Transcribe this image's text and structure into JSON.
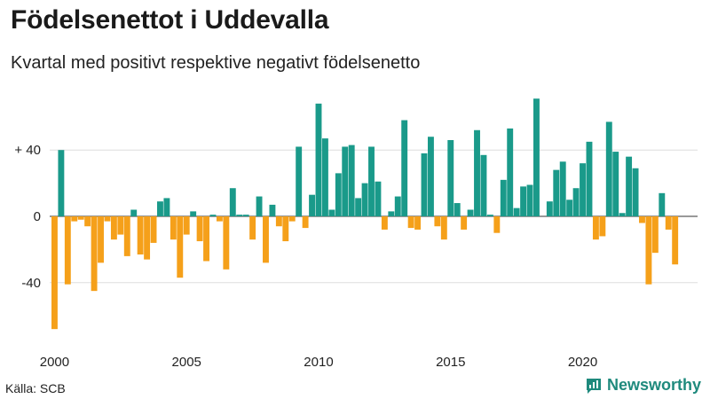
{
  "header": {
    "title": "Födelsenettot i Uddevalla",
    "subtitle": "Kvartal med positivt respektive negativt födelsenetto"
  },
  "footer": {
    "source": "Källa: SCB",
    "brand": "Newsworthy"
  },
  "colors": {
    "positive": "#1a9a8a",
    "negative": "#f5a01a",
    "grid": "#dddddd",
    "brand": "#1f8a7d"
  },
  "chart_data": {
    "type": "bar",
    "title": "Födelsenettot i Uddevalla",
    "subtitle": "Kvartal med positivt respektive negativt födelsenetto",
    "xlabel": "",
    "ylabel": "",
    "start_year": 2000,
    "periods_per_year": 4,
    "ylim": [
      -70,
      72
    ],
    "y_ticks": [
      {
        "value": 40,
        "label": "+ 40"
      },
      {
        "value": 0,
        "label": "0"
      },
      {
        "value": -40,
        "label": "-40"
      }
    ],
    "x_ticks": [
      {
        "year": 2000,
        "label": "2000"
      },
      {
        "year": 2005,
        "label": "2005"
      },
      {
        "year": 2010,
        "label": "2010"
      },
      {
        "year": 2015,
        "label": "2015"
      },
      {
        "year": 2020,
        "label": "2020"
      }
    ],
    "values": [
      -68,
      40,
      -41,
      -3,
      -2,
      -6,
      -45,
      -28,
      -3,
      -14,
      -11,
      -24,
      4,
      -23,
      -26,
      -16,
      9,
      11,
      -14,
      -37,
      -11,
      3,
      -15,
      -27,
      1,
      -3,
      -32,
      17,
      1,
      1,
      -14,
      12,
      -28,
      7,
      -6,
      -15,
      -3,
      42,
      -7,
      13,
      68,
      47,
      4,
      26,
      42,
      43,
      11,
      20,
      42,
      21,
      -8,
      3,
      12,
      58,
      -7,
      -8,
      38,
      48,
      -6,
      -14,
      46,
      8,
      -8,
      4,
      52,
      37,
      1,
      -10,
      22,
      53,
      5,
      18,
      19,
      71,
      0,
      9,
      28,
      33,
      10,
      17,
      32,
      45,
      -14,
      -12,
      57,
      39,
      2,
      36,
      29,
      -4,
      -41,
      -22,
      14,
      -8,
      -29
    ]
  }
}
